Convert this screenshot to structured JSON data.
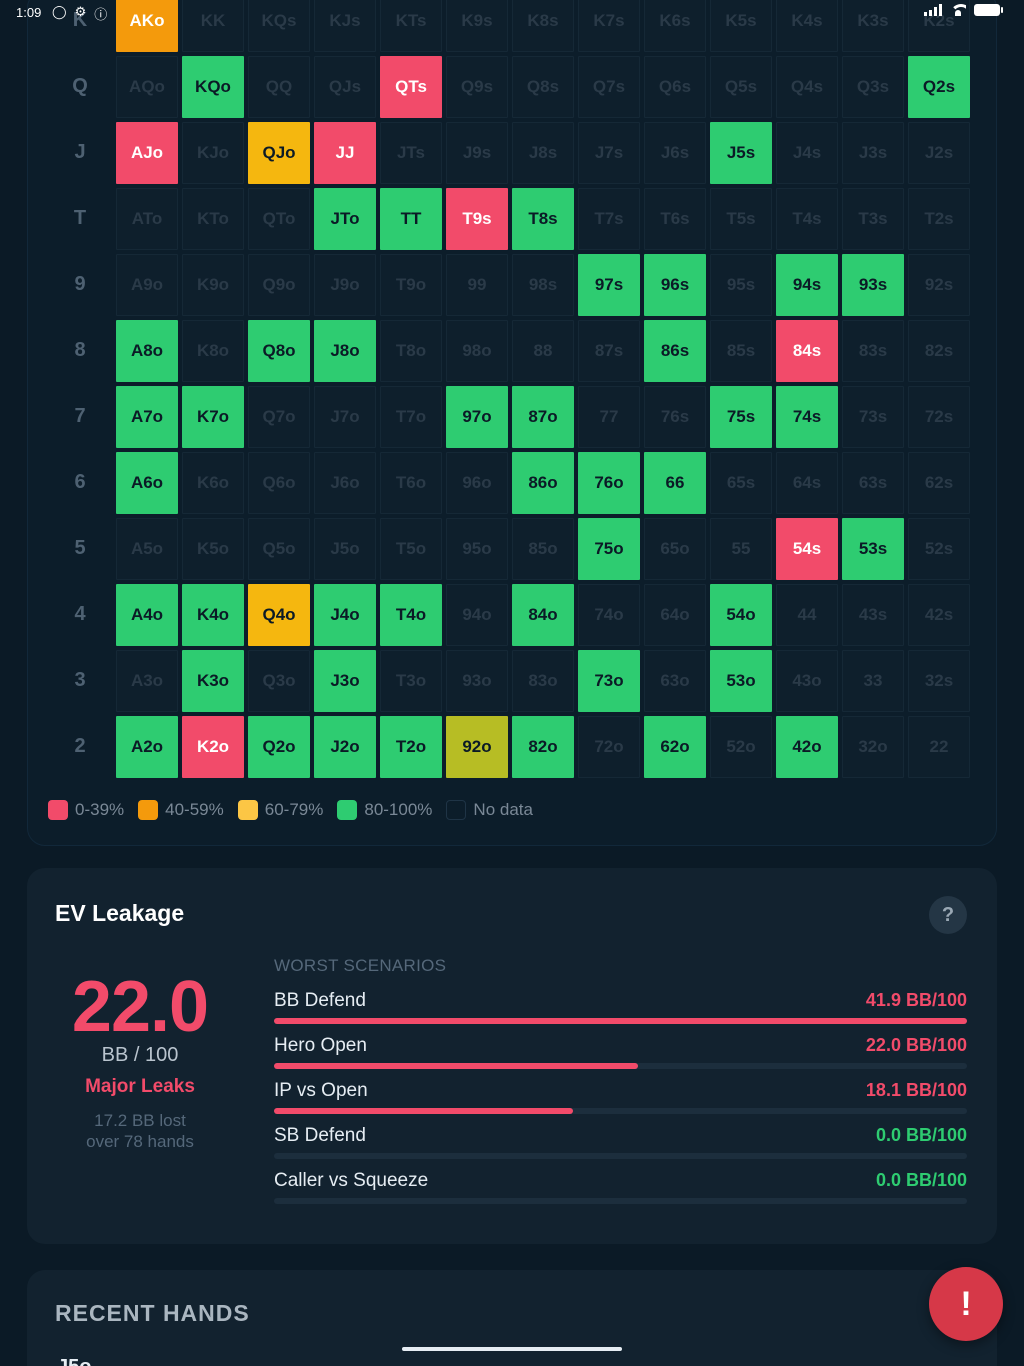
{
  "status_bar": {
    "time": "1:09"
  },
  "grid": {
    "rows": [
      {
        "label": "K",
        "cells": [
          {
            "t": "AKo",
            "s": "orange"
          },
          {
            "t": "KK",
            "s": "none"
          },
          {
            "t": "KQs",
            "s": "none"
          },
          {
            "t": "KJs",
            "s": "none"
          },
          {
            "t": "KTs",
            "s": "none"
          },
          {
            "t": "K9s",
            "s": "none"
          },
          {
            "t": "K8s",
            "s": "none"
          },
          {
            "t": "K7s",
            "s": "none"
          },
          {
            "t": "K6s",
            "s": "none"
          },
          {
            "t": "K5s",
            "s": "none"
          },
          {
            "t": "K4s",
            "s": "none"
          },
          {
            "t": "K3s",
            "s": "none"
          },
          {
            "t": "K2s",
            "s": "none"
          }
        ]
      },
      {
        "label": "Q",
        "cells": [
          {
            "t": "AQo",
            "s": "none"
          },
          {
            "t": "KQo",
            "s": "green"
          },
          {
            "t": "QQ",
            "s": "none"
          },
          {
            "t": "QJs",
            "s": "none"
          },
          {
            "t": "QTs",
            "s": "red"
          },
          {
            "t": "Q9s",
            "s": "none"
          },
          {
            "t": "Q8s",
            "s": "none"
          },
          {
            "t": "Q7s",
            "s": "none"
          },
          {
            "t": "Q6s",
            "s": "none"
          },
          {
            "t": "Q5s",
            "s": "none"
          },
          {
            "t": "Q4s",
            "s": "none"
          },
          {
            "t": "Q3s",
            "s": "none"
          },
          {
            "t": "Q2s",
            "s": "green"
          }
        ]
      },
      {
        "label": "J",
        "cells": [
          {
            "t": "AJo",
            "s": "red"
          },
          {
            "t": "KJo",
            "s": "none"
          },
          {
            "t": "QJo",
            "s": "yellow"
          },
          {
            "t": "JJ",
            "s": "red"
          },
          {
            "t": "JTs",
            "s": "none"
          },
          {
            "t": "J9s",
            "s": "none"
          },
          {
            "t": "J8s",
            "s": "none"
          },
          {
            "t": "J7s",
            "s": "none"
          },
          {
            "t": "J6s",
            "s": "none"
          },
          {
            "t": "J5s",
            "s": "green"
          },
          {
            "t": "J4s",
            "s": "none"
          },
          {
            "t": "J3s",
            "s": "none"
          },
          {
            "t": "J2s",
            "s": "none"
          }
        ]
      },
      {
        "label": "T",
        "cells": [
          {
            "t": "ATo",
            "s": "none"
          },
          {
            "t": "KTo",
            "s": "none"
          },
          {
            "t": "QTo",
            "s": "none"
          },
          {
            "t": "JTo",
            "s": "green"
          },
          {
            "t": "TT",
            "s": "green"
          },
          {
            "t": "T9s",
            "s": "red"
          },
          {
            "t": "T8s",
            "s": "green"
          },
          {
            "t": "T7s",
            "s": "none"
          },
          {
            "t": "T6s",
            "s": "none"
          },
          {
            "t": "T5s",
            "s": "none"
          },
          {
            "t": "T4s",
            "s": "none"
          },
          {
            "t": "T3s",
            "s": "none"
          },
          {
            "t": "T2s",
            "s": "none"
          }
        ]
      },
      {
        "label": "9",
        "cells": [
          {
            "t": "A9o",
            "s": "none"
          },
          {
            "t": "K9o",
            "s": "none"
          },
          {
            "t": "Q9o",
            "s": "none"
          },
          {
            "t": "J9o",
            "s": "none"
          },
          {
            "t": "T9o",
            "s": "none"
          },
          {
            "t": "99",
            "s": "none"
          },
          {
            "t": "98s",
            "s": "none"
          },
          {
            "t": "97s",
            "s": "green"
          },
          {
            "t": "96s",
            "s": "green"
          },
          {
            "t": "95s",
            "s": "none"
          },
          {
            "t": "94s",
            "s": "green"
          },
          {
            "t": "93s",
            "s": "green"
          },
          {
            "t": "92s",
            "s": "none"
          }
        ]
      },
      {
        "label": "8",
        "cells": [
          {
            "t": "A8o",
            "s": "green"
          },
          {
            "t": "K8o",
            "s": "none"
          },
          {
            "t": "Q8o",
            "s": "green"
          },
          {
            "t": "J8o",
            "s": "green"
          },
          {
            "t": "T8o",
            "s": "none"
          },
          {
            "t": "98o",
            "s": "none"
          },
          {
            "t": "88",
            "s": "none"
          },
          {
            "t": "87s",
            "s": "none"
          },
          {
            "t": "86s",
            "s": "green"
          },
          {
            "t": "85s",
            "s": "none"
          },
          {
            "t": "84s",
            "s": "red"
          },
          {
            "t": "83s",
            "s": "none"
          },
          {
            "t": "82s",
            "s": "none"
          }
        ]
      },
      {
        "label": "7",
        "cells": [
          {
            "t": "A7o",
            "s": "green"
          },
          {
            "t": "K7o",
            "s": "green"
          },
          {
            "t": "Q7o",
            "s": "none"
          },
          {
            "t": "J7o",
            "s": "none"
          },
          {
            "t": "T7o",
            "s": "none"
          },
          {
            "t": "97o",
            "s": "green"
          },
          {
            "t": "87o",
            "s": "green"
          },
          {
            "t": "77",
            "s": "none"
          },
          {
            "t": "76s",
            "s": "none"
          },
          {
            "t": "75s",
            "s": "green"
          },
          {
            "t": "74s",
            "s": "green"
          },
          {
            "t": "73s",
            "s": "none"
          },
          {
            "t": "72s",
            "s": "none"
          }
        ]
      },
      {
        "label": "6",
        "cells": [
          {
            "t": "A6o",
            "s": "green"
          },
          {
            "t": "K6o",
            "s": "none"
          },
          {
            "t": "Q6o",
            "s": "none"
          },
          {
            "t": "J6o",
            "s": "none"
          },
          {
            "t": "T6o",
            "s": "none"
          },
          {
            "t": "96o",
            "s": "none"
          },
          {
            "t": "86o",
            "s": "green"
          },
          {
            "t": "76o",
            "s": "green"
          },
          {
            "t": "66",
            "s": "green"
          },
          {
            "t": "65s",
            "s": "none"
          },
          {
            "t": "64s",
            "s": "none"
          },
          {
            "t": "63s",
            "s": "none"
          },
          {
            "t": "62s",
            "s": "none"
          }
        ]
      },
      {
        "label": "5",
        "cells": [
          {
            "t": "A5o",
            "s": "none"
          },
          {
            "t": "K5o",
            "s": "none"
          },
          {
            "t": "Q5o",
            "s": "none"
          },
          {
            "t": "J5o",
            "s": "none"
          },
          {
            "t": "T5o",
            "s": "none"
          },
          {
            "t": "95o",
            "s": "none"
          },
          {
            "t": "85o",
            "s": "none"
          },
          {
            "t": "75o",
            "s": "green"
          },
          {
            "t": "65o",
            "s": "none"
          },
          {
            "t": "55",
            "s": "none"
          },
          {
            "t": "54s",
            "s": "red"
          },
          {
            "t": "53s",
            "s": "green"
          },
          {
            "t": "52s",
            "s": "none"
          }
        ]
      },
      {
        "label": "4",
        "cells": [
          {
            "t": "A4o",
            "s": "green"
          },
          {
            "t": "K4o",
            "s": "green"
          },
          {
            "t": "Q4o",
            "s": "yellow"
          },
          {
            "t": "J4o",
            "s": "green"
          },
          {
            "t": "T4o",
            "s": "green"
          },
          {
            "t": "94o",
            "s": "none"
          },
          {
            "t": "84o",
            "s": "green"
          },
          {
            "t": "74o",
            "s": "none"
          },
          {
            "t": "64o",
            "s": "none"
          },
          {
            "t": "54o",
            "s": "green"
          },
          {
            "t": "44",
            "s": "none"
          },
          {
            "t": "43s",
            "s": "none"
          },
          {
            "t": "42s",
            "s": "none"
          }
        ]
      },
      {
        "label": "3",
        "cells": [
          {
            "t": "A3o",
            "s": "none"
          },
          {
            "t": "K3o",
            "s": "green"
          },
          {
            "t": "Q3o",
            "s": "none"
          },
          {
            "t": "J3o",
            "s": "green"
          },
          {
            "t": "T3o",
            "s": "none"
          },
          {
            "t": "93o",
            "s": "none"
          },
          {
            "t": "83o",
            "s": "none"
          },
          {
            "t": "73o",
            "s": "green"
          },
          {
            "t": "63o",
            "s": "none"
          },
          {
            "t": "53o",
            "s": "green"
          },
          {
            "t": "43o",
            "s": "none"
          },
          {
            "t": "33",
            "s": "none"
          },
          {
            "t": "32s",
            "s": "none"
          }
        ]
      },
      {
        "label": "2",
        "cells": [
          {
            "t": "A2o",
            "s": "green"
          },
          {
            "t": "K2o",
            "s": "red"
          },
          {
            "t": "Q2o",
            "s": "green"
          },
          {
            "t": "J2o",
            "s": "green"
          },
          {
            "t": "T2o",
            "s": "green"
          },
          {
            "t": "92o",
            "s": "lime"
          },
          {
            "t": "82o",
            "s": "green"
          },
          {
            "t": "72o",
            "s": "none"
          },
          {
            "t": "62o",
            "s": "green"
          },
          {
            "t": "52o",
            "s": "none"
          },
          {
            "t": "42o",
            "s": "green"
          },
          {
            "t": "32o",
            "s": "none"
          },
          {
            "t": "22",
            "s": "none"
          }
        ]
      }
    ]
  },
  "legend": [
    {
      "label": "0-39%",
      "color": "#f24b6a"
    },
    {
      "label": "40-59%",
      "color": "#f49a0c"
    },
    {
      "label": "60-79%",
      "color": "#fcc645"
    },
    {
      "label": "80-100%",
      "color": "#2ecc71"
    },
    {
      "label": "No data",
      "color": ""
    }
  ],
  "ev_leakage": {
    "title": "EV Leakage",
    "help": "?",
    "value": "22.0",
    "unit": "BB / 100",
    "status": "Major Leaks",
    "lost_line1": "17.2 BB lost",
    "lost_line2": "over 78 hands",
    "worst_header": "WORST SCENARIOS",
    "scenarios": [
      {
        "name": "BB Defend",
        "value": "41.9 BB/100",
        "fraction": 1.0,
        "tone": "red"
      },
      {
        "name": "Hero Open",
        "value": "22.0 BB/100",
        "fraction": 0.525,
        "tone": "red"
      },
      {
        "name": "IP vs Open",
        "value": "18.1 BB/100",
        "fraction": 0.432,
        "tone": "red"
      },
      {
        "name": "SB Defend",
        "value": "0.0 BB/100",
        "fraction": 0.0,
        "tone": "green"
      },
      {
        "name": "Caller vs Squeeze",
        "value": "0.0 BB/100",
        "fraction": 0.0,
        "tone": "green"
      }
    ]
  },
  "recent_hands": {
    "title": "RECENT HANDS",
    "peek": "J5o"
  },
  "fab": {
    "label": "!"
  }
}
